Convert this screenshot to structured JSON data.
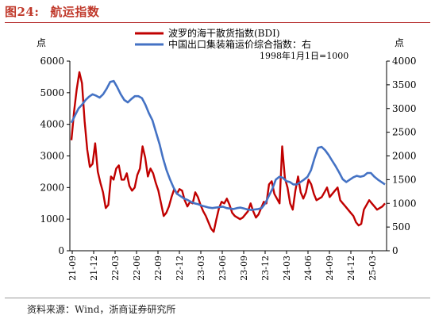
{
  "figure": {
    "label": "图24:",
    "title": "航运指数",
    "source": "资料来源：Wind，浙商证券研究所"
  },
  "colors": {
    "bdi": "#c00000",
    "ccfi": "#4472c4",
    "title": "#c0392b"
  },
  "chart_data": {
    "type": "line",
    "x_tick_labels": [
      "21-09",
      "21-12",
      "22-03",
      "22-06",
      "22-09",
      "22-12",
      "23-03",
      "23-06",
      "23-09",
      "23-12",
      "24-03",
      "24-06",
      "24-09",
      "24-12",
      "25-03"
    ],
    "left_axis": {
      "unit": "点",
      "ylim": [
        0,
        6000
      ],
      "ticks": [
        "0",
        "1000",
        "2000",
        "3000",
        "4000",
        "5000",
        "6000"
      ]
    },
    "right_axis": {
      "unit": "点",
      "ylim": [
        0,
        4000
      ],
      "ticks": [
        "0",
        "500",
        "1000",
        "1500",
        "2000",
        "2500",
        "3000",
        "3500",
        "4000"
      ]
    },
    "legend": {
      "position": "top",
      "note": "1998年1月1日=1000"
    },
    "series": [
      {
        "name": "波罗的海干散货指数(BDI)",
        "axis": "left",
        "values": [
          3500,
          4400,
          5100,
          5650,
          5300,
          4100,
          3200,
          2650,
          2750,
          3400,
          2500,
          2150,
          1850,
          1350,
          1450,
          2350,
          2250,
          2600,
          2700,
          2250,
          2250,
          2450,
          2050,
          1900,
          2000,
          2400,
          2600,
          3300,
          2950,
          2350,
          2600,
          2450,
          2150,
          1900,
          1500,
          1100,
          1200,
          1400,
          1700,
          1950,
          1800,
          1950,
          1900,
          1600,
          1400,
          1550,
          1500,
          1850,
          1700,
          1450,
          1250,
          1100,
          900,
          700,
          600,
          1000,
          1350,
          1550,
          1500,
          1650,
          1450,
          1200,
          1100,
          1050,
          1000,
          1050,
          1150,
          1250,
          1500,
          1250,
          1050,
          1150,
          1350,
          1550,
          1500,
          2100,
          2200,
          1800,
          1650,
          1500,
          3300,
          2300,
          2000,
          1500,
          1300,
          1900,
          2350,
          1850,
          1650,
          1850,
          2250,
          2100,
          1800,
          1600,
          1650,
          1700,
          1850,
          2000,
          1700,
          1800,
          1900,
          2000,
          1600,
          1500,
          1400,
          1300,
          1200,
          1100,
          900,
          800,
          850,
          1300,
          1450,
          1600,
          1500,
          1400,
          1300,
          1350,
          1400,
          1500
        ]
      },
      {
        "name": "中国出口集装箱运价综合指数：右",
        "axis": "right",
        "values": [
          2700,
          2850,
          3000,
          3080,
          3180,
          3250,
          3300,
          3270,
          3230,
          3300,
          3420,
          3560,
          3580,
          3450,
          3300,
          3180,
          3130,
          3200,
          3260,
          3260,
          3220,
          3080,
          2900,
          2750,
          2500,
          2250,
          1950,
          1700,
          1500,
          1330,
          1200,
          1150,
          1100,
          1070,
          1030,
          1000,
          980,
          950,
          930,
          910,
          900,
          910,
          920,
          930,
          900,
          890,
          880,
          900,
          910,
          890,
          870,
          860,
          870,
          880,
          900,
          1000,
          1150,
          1300,
          1500,
          1560,
          1540,
          1470,
          1450,
          1400,
          1400,
          1450,
          1500,
          1560,
          1700,
          1950,
          2170,
          2190,
          2120,
          2020,
          1900,
          1780,
          1650,
          1510,
          1450,
          1500,
          1550,
          1580,
          1560,
          1580,
          1640,
          1640,
          1560,
          1500,
          1450,
          1400
        ]
      }
    ]
  }
}
